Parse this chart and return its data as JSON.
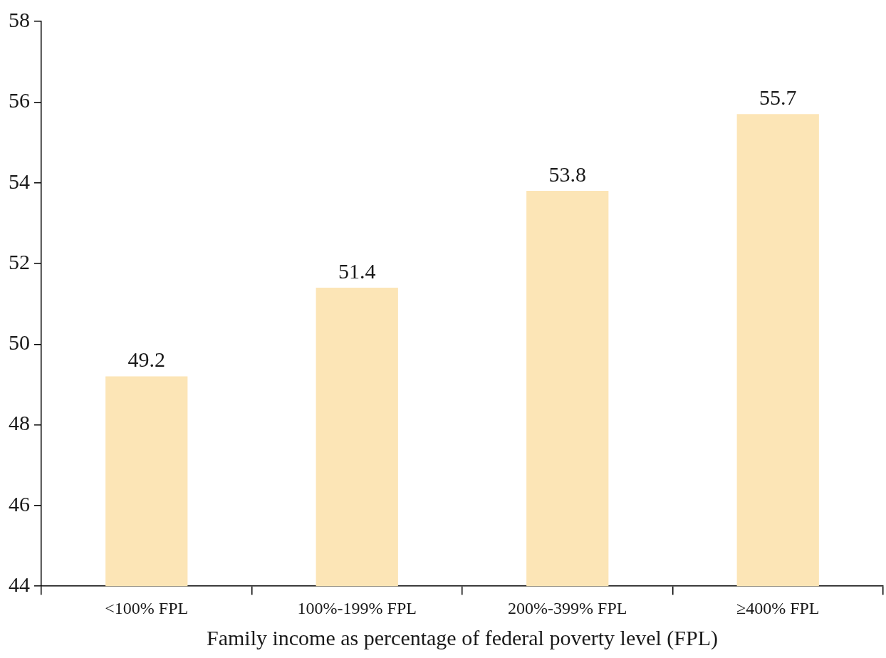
{
  "chart_data": {
    "type": "bar",
    "xlabel": "Family income as percentage of federal poverty level (FPL)",
    "categories": [
      "<100% FPL",
      "100%-199% FPL",
      "200%-399% FPL",
      "≥400% FPL"
    ],
    "values": [
      49.2,
      51.4,
      53.8,
      55.7
    ],
    "color": "#fce5b6",
    "ylim": [
      44,
      58
    ],
    "yticks": [
      44,
      46,
      48,
      50,
      52,
      54,
      56,
      58
    ],
    "grid": false,
    "legend": false,
    "data_labels": true
  }
}
